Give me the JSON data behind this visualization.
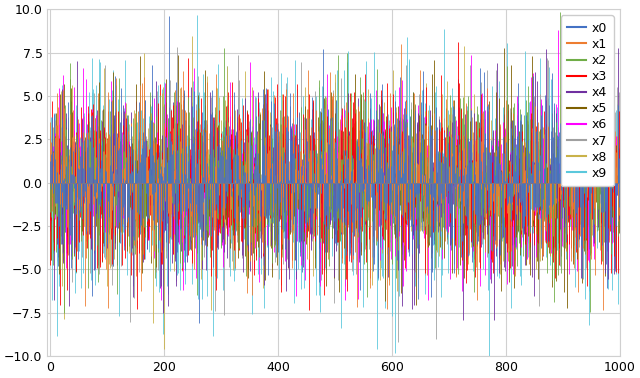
{
  "n_series": 10,
  "n_points": 1000,
  "series_names": [
    "x0",
    "x1",
    "x2",
    "x3",
    "x4",
    "x5",
    "x6",
    "x7",
    "x8",
    "x9"
  ],
  "colors": [
    "#4472c4",
    "#ed7d31",
    "#70ad47",
    "#ff0000",
    "#7030a0",
    "#7f6000",
    "#ff00ff",
    "#a0a0a0",
    "#c9b24a",
    "#5bc8dc"
  ],
  "ylim": [
    -10.0,
    10.0
  ],
  "xlim": [
    -5,
    1000
  ],
  "ylabel_ticks": [
    -10.0,
    -7.5,
    -5.0,
    -2.5,
    0.0,
    2.5,
    5.0,
    7.5,
    10.0
  ],
  "xlabel_ticks": [
    0,
    200,
    400,
    600,
    800,
    1000
  ],
  "background_color": "#ffffff",
  "grid_color": "#d0d0d0",
  "legend_fontsize": 9,
  "stds": [
    2.5,
    2.5,
    2.5,
    2.5,
    2.5,
    2.5,
    2.5,
    2.5,
    2.5,
    3.5
  ]
}
